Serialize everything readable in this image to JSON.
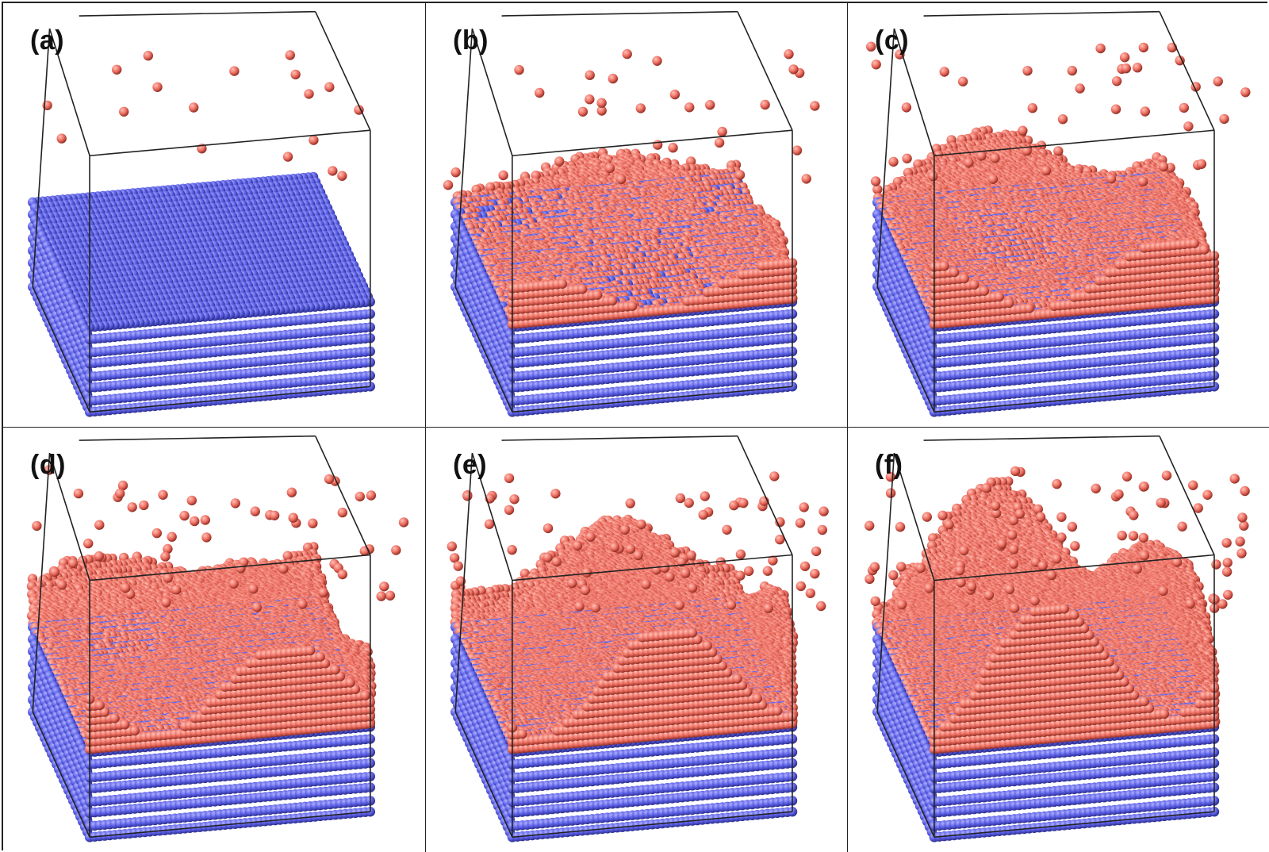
{
  "panels": [
    {
      "label": "(a)"
    },
    {
      "label": "(b)"
    },
    {
      "label": "(c)"
    },
    {
      "label": "(d)"
    },
    {
      "label": "(e)"
    },
    {
      "label": "(f)"
    }
  ],
  "colors": {
    "substrate_atoms": "#5b5fe6",
    "deposited_atoms": "#ee6f62",
    "box_edges": "#222222",
    "panel_border": "#222222"
  }
}
